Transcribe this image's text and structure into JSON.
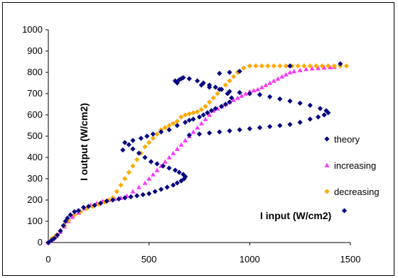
{
  "chart_data": {
    "type": "scatter",
    "title": "",
    "xlabel": "I input (W/cm2)",
    "ylabel": "I output (W/cm2)",
    "xlim": [
      0,
      1500
    ],
    "ylim": [
      0,
      1000
    ],
    "xticks": [
      0,
      500,
      1000,
      1500
    ],
    "yticks": [
      0,
      100,
      200,
      300,
      400,
      500,
      600,
      700,
      800,
      900,
      1000
    ],
    "grid": false,
    "legend_position": "right",
    "series": [
      {
        "name": "theory",
        "color": "#000080",
        "marker": "diamond",
        "points": [
          [
            0,
            0
          ],
          [
            15,
            10
          ],
          [
            30,
            20
          ],
          [
            45,
            35
          ],
          [
            60,
            55
          ],
          [
            75,
            80
          ],
          [
            85,
            100
          ],
          [
            95,
            115
          ],
          [
            110,
            130
          ],
          [
            130,
            145
          ],
          [
            150,
            150
          ],
          [
            175,
            165
          ],
          [
            200,
            170
          ],
          [
            230,
            175
          ],
          [
            260,
            185
          ],
          [
            290,
            195
          ],
          [
            320,
            200
          ],
          [
            350,
            205
          ],
          [
            380,
            210
          ],
          [
            410,
            215
          ],
          [
            440,
            220
          ],
          [
            470,
            225
          ],
          [
            500,
            230
          ],
          [
            530,
            240
          ],
          [
            560,
            250
          ],
          [
            590,
            260
          ],
          [
            620,
            270
          ],
          [
            640,
            280
          ],
          [
            660,
            290
          ],
          [
            675,
            300
          ],
          [
            680,
            310
          ],
          [
            670,
            320
          ],
          [
            650,
            330
          ],
          [
            630,
            340
          ],
          [
            600,
            350
          ],
          [
            570,
            360
          ],
          [
            540,
            370
          ],
          [
            510,
            380
          ],
          [
            480,
            400
          ],
          [
            450,
            420
          ],
          [
            420,
            440
          ],
          [
            400,
            460
          ],
          [
            380,
            470
          ],
          [
            370,
            435
          ],
          [
            420,
            480
          ],
          [
            460,
            490
          ],
          [
            490,
            500
          ],
          [
            520,
            510
          ],
          [
            560,
            520
          ],
          [
            600,
            530
          ],
          [
            640,
            550
          ],
          [
            680,
            565
          ],
          [
            700,
            575
          ],
          [
            720,
            580
          ],
          [
            750,
            590
          ],
          [
            770,
            600
          ],
          [
            790,
            610
          ],
          [
            810,
            620
          ],
          [
            830,
            630
          ],
          [
            860,
            640
          ],
          [
            880,
            650
          ],
          [
            900,
            660
          ],
          [
            910,
            680
          ],
          [
            890,
            700
          ],
          [
            860,
            720
          ],
          [
            830,
            730
          ],
          [
            800,
            740
          ],
          [
            770,
            750
          ],
          [
            740,
            760
          ],
          [
            700,
            770
          ],
          [
            670,
            775
          ],
          [
            660,
            770
          ],
          [
            650,
            765
          ],
          [
            630,
            760
          ],
          [
            640,
            750
          ],
          [
            700,
            505
          ],
          [
            750,
            510
          ],
          [
            800,
            515
          ],
          [
            850,
            520
          ],
          [
            900,
            525
          ],
          [
            950,
            530
          ],
          [
            1000,
            535
          ],
          [
            1050,
            540
          ],
          [
            1100,
            545
          ],
          [
            1150,
            550
          ],
          [
            1200,
            555
          ],
          [
            1250,
            565
          ],
          [
            1300,
            580
          ],
          [
            1340,
            590
          ],
          [
            1370,
            600
          ],
          [
            1390,
            610
          ],
          [
            1380,
            620
          ],
          [
            1350,
            630
          ],
          [
            1300,
            645
          ],
          [
            1250,
            655
          ],
          [
            1200,
            665
          ],
          [
            1150,
            675
          ],
          [
            1100,
            685
          ],
          [
            1050,
            695
          ],
          [
            1000,
            700
          ],
          [
            950,
            705
          ],
          [
            900,
            710
          ],
          [
            850,
            720
          ],
          [
            800,
            730
          ],
          [
            760,
            740
          ],
          [
            850,
            795
          ],
          [
            900,
            800
          ],
          [
            950,
            805
          ],
          [
            1200,
            830
          ],
          [
            1450,
            840
          ],
          [
            1470,
            150
          ]
        ]
      },
      {
        "name": "increasing",
        "color": "#ff33ff",
        "marker": "triangle",
        "points": [
          [
            0,
            0
          ],
          [
            20,
            15
          ],
          [
            40,
            30
          ],
          [
            60,
            50
          ],
          [
            80,
            75
          ],
          [
            100,
            100
          ],
          [
            120,
            120
          ],
          [
            150,
            140
          ],
          [
            180,
            160
          ],
          [
            210,
            175
          ],
          [
            240,
            185
          ],
          [
            270,
            195
          ],
          [
            300,
            200
          ],
          [
            330,
            205
          ],
          [
            360,
            210
          ],
          [
            390,
            220
          ],
          [
            420,
            240
          ],
          [
            450,
            260
          ],
          [
            480,
            280
          ],
          [
            500,
            300
          ],
          [
            520,
            320
          ],
          [
            540,
            340
          ],
          [
            560,
            360
          ],
          [
            580,
            380
          ],
          [
            600,
            400
          ],
          [
            620,
            420
          ],
          [
            640,
            440
          ],
          [
            660,
            460
          ],
          [
            680,
            480
          ],
          [
            700,
            500
          ],
          [
            720,
            520
          ],
          [
            740,
            540
          ],
          [
            760,
            560
          ],
          [
            780,
            580
          ],
          [
            800,
            600
          ],
          [
            820,
            620
          ],
          [
            840,
            630
          ],
          [
            860,
            640
          ],
          [
            880,
            650
          ],
          [
            900,
            660
          ],
          [
            920,
            670
          ],
          [
            940,
            680
          ],
          [
            960,
            690
          ],
          [
            980,
            700
          ],
          [
            1000,
            710
          ],
          [
            1020,
            715
          ],
          [
            1040,
            720
          ],
          [
            1060,
            730
          ],
          [
            1080,
            740
          ],
          [
            1100,
            750
          ],
          [
            1120,
            760
          ],
          [
            1140,
            770
          ],
          [
            1160,
            780
          ],
          [
            1180,
            790
          ],
          [
            1200,
            800
          ],
          [
            1220,
            805
          ],
          [
            1250,
            810
          ],
          [
            1280,
            815
          ],
          [
            1310,
            818
          ],
          [
            1340,
            820
          ],
          [
            1370,
            822
          ],
          [
            1400,
            824
          ],
          [
            1420,
            825
          ]
        ]
      },
      {
        "name": "decreasing",
        "color": "#ffaa00",
        "marker": "diamond",
        "points": [
          [
            1480,
            830
          ],
          [
            1450,
            830
          ],
          [
            1420,
            830
          ],
          [
            1390,
            830
          ],
          [
            1360,
            830
          ],
          [
            1330,
            830
          ],
          [
            1300,
            830
          ],
          [
            1270,
            830
          ],
          [
            1240,
            830
          ],
          [
            1210,
            830
          ],
          [
            1180,
            830
          ],
          [
            1150,
            830
          ],
          [
            1120,
            830
          ],
          [
            1090,
            830
          ],
          [
            1060,
            830
          ],
          [
            1030,
            830
          ],
          [
            1000,
            830
          ],
          [
            970,
            820
          ],
          [
            940,
            800
          ],
          [
            920,
            780
          ],
          [
            900,
            760
          ],
          [
            880,
            740
          ],
          [
            860,
            720
          ],
          [
            840,
            700
          ],
          [
            820,
            680
          ],
          [
            800,
            660
          ],
          [
            780,
            640
          ],
          [
            760,
            625
          ],
          [
            740,
            615
          ],
          [
            720,
            610
          ],
          [
            700,
            605
          ],
          [
            680,
            600
          ],
          [
            660,
            590
          ],
          [
            640,
            570
          ],
          [
            620,
            560
          ],
          [
            600,
            550
          ],
          [
            580,
            540
          ],
          [
            560,
            530
          ],
          [
            540,
            510
          ],
          [
            520,
            490
          ],
          [
            500,
            470
          ],
          [
            480,
            450
          ],
          [
            460,
            420
          ],
          [
            440,
            390
          ],
          [
            420,
            360
          ],
          [
            400,
            330
          ],
          [
            380,
            300
          ],
          [
            360,
            270
          ],
          [
            340,
            240
          ],
          [
            320,
            210
          ],
          [
            300,
            200
          ],
          [
            280,
            190
          ],
          [
            250,
            180
          ],
          [
            220,
            170
          ],
          [
            190,
            160
          ],
          [
            160,
            145
          ],
          [
            130,
            130
          ],
          [
            100,
            105
          ],
          [
            80,
            80
          ],
          [
            60,
            55
          ],
          [
            40,
            35
          ],
          [
            20,
            20
          ],
          [
            0,
            0
          ]
        ]
      }
    ]
  }
}
